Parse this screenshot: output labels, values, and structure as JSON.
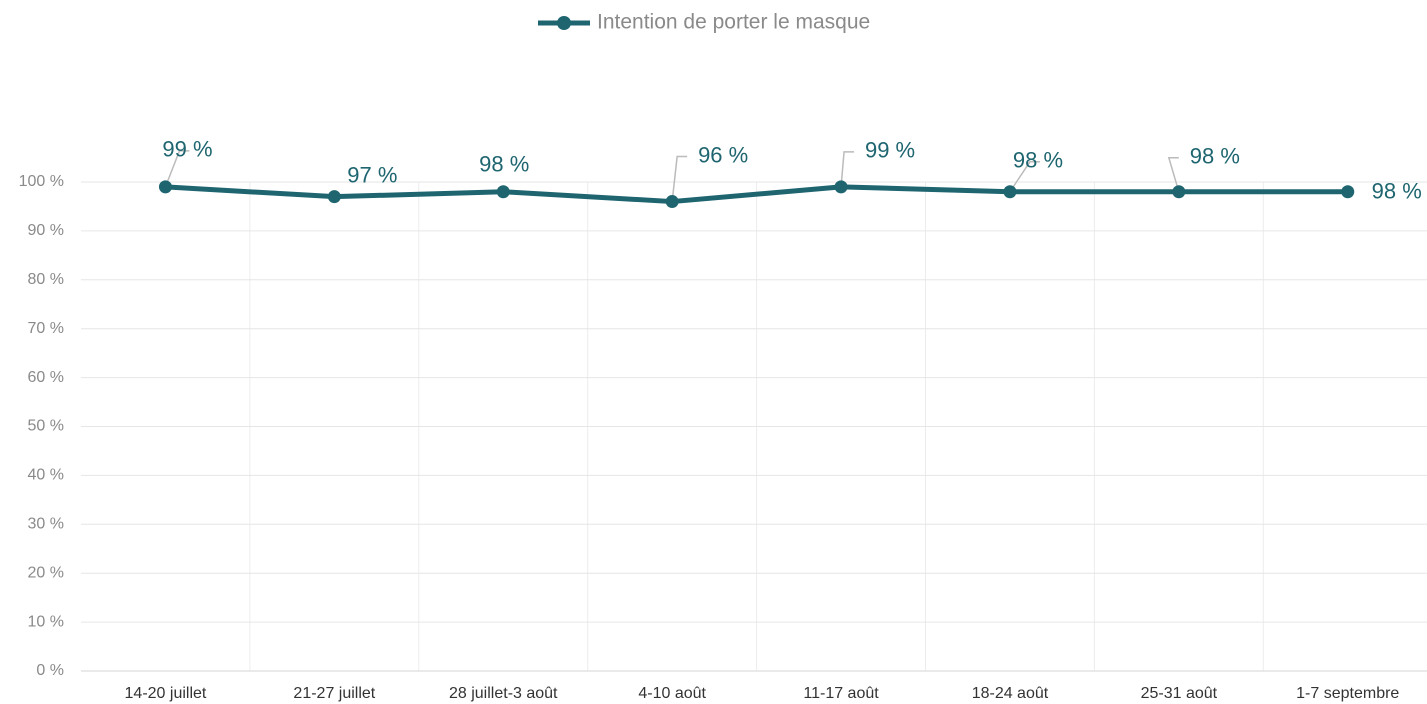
{
  "chart_data": {
    "type": "line",
    "categories": [
      "14-20 juillet",
      "21-27 juillet",
      "28 juillet-3 août",
      "4-10 août",
      "11-17 août",
      "18-24 août",
      "25-31 août",
      "1-7 septembre"
    ],
    "series": [
      {
        "name": "Intention de porter le masque",
        "color": "#1e6570",
        "values": [
          99,
          97,
          98,
          96,
          99,
          98,
          98,
          98
        ],
        "value_labels": [
          "99 %",
          "97 %",
          "98 %",
          "96 %",
          "99 %",
          "98 %",
          "98 %",
          "98 %"
        ]
      }
    ],
    "ylim": [
      0,
      100
    ],
    "yticks": [
      {
        "value": 0,
        "label": "0 %"
      },
      {
        "value": 10,
        "label": "10 %"
      },
      {
        "value": 20,
        "label": "20 %"
      },
      {
        "value": 30,
        "label": "30 %"
      },
      {
        "value": 40,
        "label": "40 %"
      },
      {
        "value": 50,
        "label": "50 %"
      },
      {
        "value": 60,
        "label": "60 %"
      },
      {
        "value": 70,
        "label": "70 %"
      },
      {
        "value": 80,
        "label": "80 %"
      },
      {
        "value": 90,
        "label": "90 %"
      },
      {
        "value": 100,
        "label": "100 %"
      }
    ],
    "grid": true,
    "legend": "top"
  }
}
